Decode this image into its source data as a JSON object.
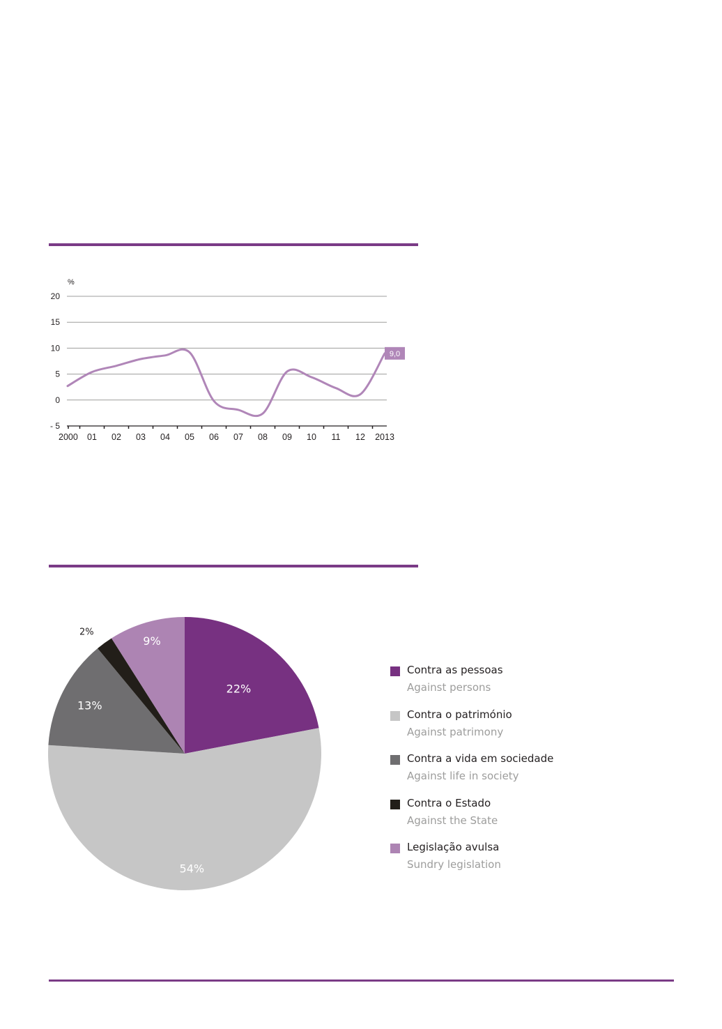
{
  "colors": {
    "accent": "#7a3b86",
    "line": "#b086b8",
    "grid": "#9d9d9c",
    "axis": "#231f20"
  },
  "chart_data": [
    {
      "type": "line",
      "ylabel": "%",
      "ylim": [
        -5,
        20
      ],
      "yticks": [
        "20",
        "15",
        "10",
        "5",
        "0",
        "- 5"
      ],
      "yticks_values": [
        20,
        15,
        10,
        5,
        0,
        -5
      ],
      "categories": [
        "2000",
        "01",
        "02",
        "03",
        "04",
        "05",
        "06",
        "07",
        "08",
        "09",
        "10",
        "11",
        "12",
        "2013"
      ],
      "series": [
        {
          "color": "#b086b8",
          "values": [
            2.7,
            5.4,
            6.6,
            7.9,
            8.6,
            9.2,
            -0.2,
            -1.9,
            -2.6,
            5.5,
            4.4,
            2.3,
            1.1,
            9.0
          ]
        }
      ],
      "end_label": "9,0",
      "grid": true
    },
    {
      "type": "pie",
      "slices": [
        {
          "label": "22%",
          "value": 22,
          "color": "#773181",
          "name_pt": "Contra as pessoas",
          "name_en": "Against persons"
        },
        {
          "label": "54%",
          "value": 54,
          "color": "#c6c6c6",
          "name_pt": "Contra o património",
          "name_en": "Against patrimony"
        },
        {
          "label": "13%",
          "value": 13,
          "color": "#6f6e70",
          "name_pt": "Contra a vida em sociedade",
          "name_en": "Against life in society"
        },
        {
          "label": "2%",
          "value": 2,
          "color": "#221e19",
          "name_pt": "Contra o Estado",
          "name_en": "Against the State"
        },
        {
          "label": "9%",
          "value": 9,
          "color": "#ad84b3",
          "name_pt": "Legislação avulsa",
          "name_en": "Sundry legislation"
        }
      ],
      "legend": "right"
    }
  ]
}
